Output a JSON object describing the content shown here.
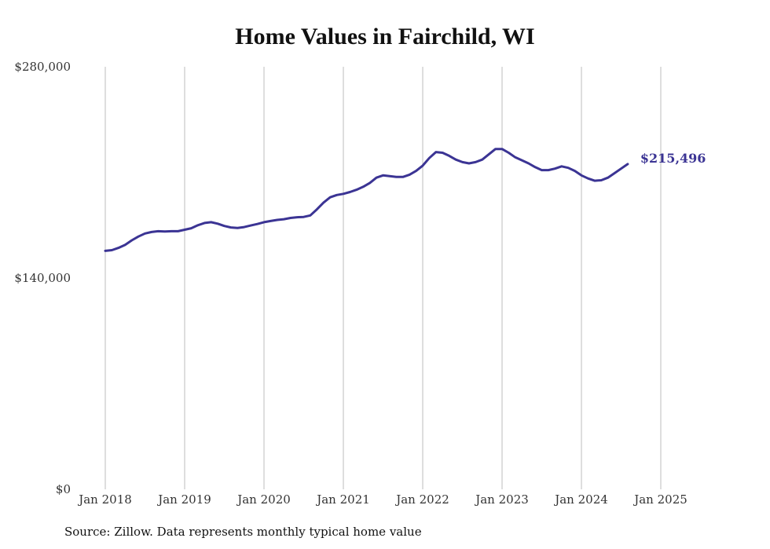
{
  "chart_data": {
    "type": "line",
    "title": "Home Values in Fairchild, WI",
    "source": "Source: Zillow. Data represents monthly typical home value",
    "xlabel": "",
    "ylabel": "",
    "ylim": [
      0,
      280000
    ],
    "y_ticks": [
      {
        "value": 0,
        "label": "$0"
      },
      {
        "value": 140000,
        "label": "$140,000"
      },
      {
        "value": 280000,
        "label": "$280,000"
      }
    ],
    "x_ticks": [
      {
        "month_index": 0,
        "label": "Jan 2018"
      },
      {
        "month_index": 12,
        "label": "Jan 2019"
      },
      {
        "month_index": 24,
        "label": "Jan 2020"
      },
      {
        "month_index": 36,
        "label": "Jan 2021"
      },
      {
        "month_index": 48,
        "label": "Jan 2022"
      },
      {
        "month_index": 60,
        "label": "Jan 2023"
      },
      {
        "month_index": 72,
        "label": "Jan 2024"
      },
      {
        "month_index": 84,
        "label": "Jan 2025"
      }
    ],
    "grid": "vertical",
    "line_color": "#3b3494",
    "end_label": "$215,496",
    "series": [
      {
        "x_start": "Jan 2018",
        "frequency": "monthly",
        "values": [
          158000,
          158500,
          160000,
          162000,
          165000,
          167500,
          169500,
          170500,
          171000,
          170800,
          171000,
          171000,
          172000,
          173000,
          175000,
          176500,
          177000,
          176000,
          174500,
          173500,
          173200,
          173800,
          174800,
          175800,
          177000,
          177800,
          178500,
          179000,
          179800,
          180300,
          180500,
          181500,
          185500,
          190000,
          193500,
          195000,
          195800,
          197000,
          198500,
          200500,
          203000,
          206500,
          208000,
          207500,
          207000,
          207000,
          208500,
          211000,
          214500,
          219500,
          223500,
          223000,
          221000,
          218500,
          216800,
          216000,
          216800,
          218500,
          222000,
          225500,
          225500,
          223000,
          220000,
          218000,
          216000,
          213500,
          211500,
          211500,
          212500,
          214000,
          213000,
          211000,
          208000,
          206000,
          204500,
          204800,
          206500,
          209500,
          212500,
          215496
        ]
      }
    ]
  }
}
